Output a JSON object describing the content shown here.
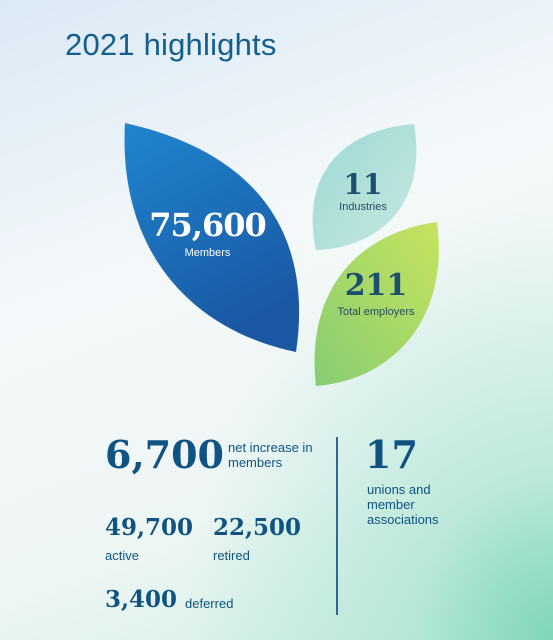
{
  "title": "2021 highlights",
  "leaves": {
    "members": {
      "value": "75,600",
      "label": "Members",
      "color_top": "#1f7fc8",
      "color_bottom": "#1b5ea8"
    },
    "industries": {
      "value": "11",
      "label": "Industries",
      "color": "#aadfd8"
    },
    "employers": {
      "value": "211",
      "label": "Total employers",
      "color_top": "#bfe06a",
      "color_bottom": "#8ecf6c"
    }
  },
  "stats": {
    "net_increase": {
      "value": "6,700",
      "label": "net increase in members"
    },
    "active": {
      "value": "49,700",
      "label": "active"
    },
    "retired": {
      "value": "22,500",
      "label": "retired"
    },
    "deferred": {
      "value": "3,400",
      "label": "deferred"
    },
    "unions": {
      "value": "17",
      "label": "unions and member associations"
    }
  },
  "colors": {
    "primary_text": "#0f5383",
    "divider": "#2d6a92"
  }
}
